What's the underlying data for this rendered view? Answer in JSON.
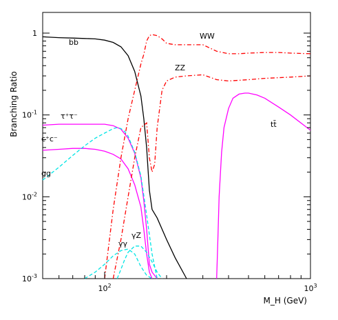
{
  "chart_data": {
    "type": "line",
    "title": "",
    "xlabel": "M_H (GeV)",
    "ylabel": "Branching Ratio",
    "xscale": "log",
    "yscale": "log",
    "xlim": [
      50,
      1000
    ],
    "ylim": [
      0.001,
      1
    ],
    "grid": false,
    "legend": "none (labels drawn next to curves)",
    "x_ticks": [
      {
        "value": 100,
        "label": "10^2"
      },
      {
        "value": 1000,
        "label": "10^3"
      }
    ],
    "y_ticks": [
      {
        "value": 1,
        "label": "1"
      },
      {
        "value": 0.1,
        "label": "10^-1"
      },
      {
        "value": 0.01,
        "label": "10^-2"
      },
      {
        "value": 0.001,
        "label": "10^-3"
      }
    ],
    "series": [
      {
        "name": "bb̄",
        "color": "#000000",
        "dash": "solid",
        "x": [
          50,
          60,
          70,
          80,
          90,
          100,
          110,
          120,
          130,
          140,
          150,
          155,
          160,
          165,
          170,
          180,
          200,
          220,
          250
        ],
        "y": [
          0.9,
          0.88,
          0.87,
          0.86,
          0.85,
          0.82,
          0.77,
          0.68,
          0.53,
          0.34,
          0.17,
          0.09,
          0.04,
          0.012,
          0.007,
          0.0055,
          0.003,
          0.0018,
          0.001
        ]
      },
      {
        "name": "τ⁺τ⁻",
        "color": "#ff00ff",
        "dash": "solid",
        "x": [
          50,
          60,
          70,
          80,
          90,
          100,
          110,
          120,
          130,
          140,
          150,
          155,
          160,
          165,
          170,
          180
        ],
        "y": [
          0.075,
          0.077,
          0.077,
          0.077,
          0.077,
          0.077,
          0.074,
          0.067,
          0.052,
          0.034,
          0.017,
          0.009,
          0.004,
          0.0015,
          0.0012,
          0.001
        ]
      },
      {
        "name": "c⁺c⁻",
        "color": "#ff00ff",
        "dash": "solid",
        "x": [
          50,
          60,
          70,
          80,
          90,
          100,
          110,
          120,
          130,
          140,
          150,
          155,
          160,
          165,
          170
        ],
        "y": [
          0.037,
          0.038,
          0.039,
          0.039,
          0.038,
          0.036,
          0.033,
          0.029,
          0.022,
          0.014,
          0.0075,
          0.004,
          0.002,
          0.0012,
          0.001
        ]
      },
      {
        "name": "gg",
        "color": "#00e5e5",
        "dash": "dashed",
        "x": [
          50,
          60,
          70,
          80,
          90,
          100,
          110,
          115,
          120,
          125,
          130,
          140,
          150,
          160,
          170,
          180
        ],
        "y": [
          0.016,
          0.023,
          0.032,
          0.042,
          0.052,
          0.06,
          0.068,
          0.07,
          0.068,
          0.063,
          0.055,
          0.035,
          0.018,
          0.006,
          0.002,
          0.001
        ]
      },
      {
        "name": "WW",
        "color": "#ff0000",
        "dash": "dashdot",
        "x": [
          100,
          110,
          120,
          130,
          140,
          150,
          155,
          160,
          165,
          170,
          180,
          190,
          200,
          220,
          240,
          270,
          300,
          350,
          400,
          450,
          500,
          600,
          700,
          800,
          1000
        ],
        "y": [
          0.001,
          0.007,
          0.03,
          0.09,
          0.2,
          0.42,
          0.55,
          0.8,
          0.93,
          0.96,
          0.93,
          0.85,
          0.75,
          0.72,
          0.72,
          0.72,
          0.72,
          0.6,
          0.56,
          0.56,
          0.57,
          0.58,
          0.58,
          0.57,
          0.56
        ]
      },
      {
        "name": "ZZ",
        "color": "#ff0000",
        "dash": "dashdot",
        "x": [
          110,
          120,
          130,
          140,
          150,
          160,
          165,
          170,
          175,
          180,
          190,
          200,
          220,
          250,
          300,
          350,
          400,
          500,
          600,
          800,
          1000
        ],
        "y": [
          0.001,
          0.003,
          0.01,
          0.03,
          0.07,
          0.08,
          0.03,
          0.02,
          0.025,
          0.07,
          0.2,
          0.26,
          0.29,
          0.3,
          0.31,
          0.27,
          0.26,
          0.27,
          0.28,
          0.29,
          0.3
        ]
      },
      {
        "name": "tt̄",
        "color": "#ff00ff",
        "dash": "solid",
        "x": [
          350,
          355,
          360,
          370,
          380,
          400,
          420,
          450,
          480,
          500,
          550,
          600,
          700,
          800,
          1000
        ],
        "y": [
          0.001,
          0.003,
          0.01,
          0.035,
          0.07,
          0.12,
          0.16,
          0.18,
          0.185,
          0.185,
          0.175,
          0.16,
          0.125,
          0.1,
          0.065
        ]
      },
      {
        "name": "γγ",
        "color": "#00e5e5",
        "dash": "dashed",
        "x": [
          80,
          90,
          100,
          110,
          120,
          130,
          140,
          150,
          160,
          170
        ],
        "y": [
          0.001,
          0.0012,
          0.0015,
          0.0019,
          0.0022,
          0.0023,
          0.002,
          0.0014,
          0.0011,
          0.001
        ]
      },
      {
        "name": "γZ",
        "color": "#00e5e5",
        "dash": "dashed",
        "x": [
          115,
          120,
          125,
          130,
          140,
          150,
          160,
          170,
          180,
          190
        ],
        "y": [
          0.001,
          0.0013,
          0.0017,
          0.0021,
          0.0025,
          0.0025,
          0.0021,
          0.0016,
          0.0012,
          0.001
        ]
      }
    ]
  }
}
